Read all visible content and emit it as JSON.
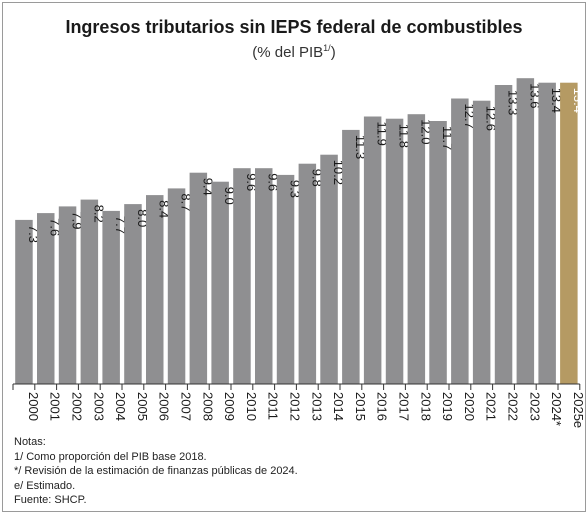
{
  "title": "Ingresos tributarios sin IEPS federal de combustibles",
  "subtitle": "(% del PIB",
  "subtitle_sup": "1/",
  "subtitle_end": ")",
  "colors": {
    "bar": "#8f8f91",
    "highlight": "#b59a63",
    "label": "#1a1a1a",
    "label_on_highlight": "#ffffff"
  },
  "chart_data": {
    "type": "bar",
    "categories": [
      "2000",
      "2001",
      "2002",
      "2003",
      "2004",
      "2005",
      "2006",
      "2007",
      "2008",
      "2009",
      "2010",
      "2011",
      "2012",
      "2013",
      "2014",
      "2015",
      "2016",
      "2017",
      "2018",
      "2019",
      "2020",
      "2021",
      "2022",
      "2023",
      "2024*",
      "2025e"
    ],
    "values": [
      7.3,
      7.6,
      7.9,
      8.2,
      7.7,
      8.0,
      8.4,
      8.7,
      9.4,
      9.0,
      9.6,
      9.6,
      9.3,
      9.8,
      10.2,
      11.3,
      11.9,
      11.8,
      12.0,
      11.7,
      12.7,
      12.6,
      13.3,
      13.6,
      13.4,
      13.4
    ],
    "value_labels": [
      "7.3",
      "7.6",
      "7.9",
      "8.2",
      "7.7",
      "8.0",
      "8.4",
      "8.7",
      "9.4",
      "9.0",
      "9.6",
      "9.6",
      "9.3",
      "9.8",
      "10.2",
      "11.3",
      "11.9",
      "11.8",
      "12.0",
      "11.7",
      "12.7",
      "12.6",
      "13.3",
      "13.6",
      "13.4",
      "13.4"
    ],
    "highlight_category": "2025e",
    "ylim": [
      0,
      14.5
    ],
    "xlabel": "",
    "ylabel": "",
    "grid": false,
    "legend": "none"
  },
  "notes": [
    "Notas:",
    "1/ Como proporción del PIB base 2018.",
    "*/ Revisión de la estimación de finanzas públicas de 2024.",
    "e/ Estimado.",
    "Fuente: SHCP."
  ]
}
